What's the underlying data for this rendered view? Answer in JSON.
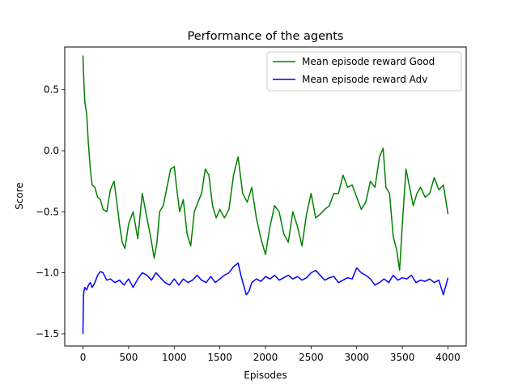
{
  "chart_data": {
    "type": "line",
    "title": "Performance of the agents",
    "xlabel": "Episodes",
    "ylabel": "Score",
    "xlim": [
      -200,
      4200
    ],
    "ylim": [
      -1.6,
      0.85
    ],
    "xticks": [
      0,
      500,
      1000,
      1500,
      2000,
      2500,
      3000,
      3500,
      4000
    ],
    "yticks": [
      -1.5,
      -1.0,
      -0.5,
      0.0,
      0.5
    ],
    "ytick_labels": [
      "−1.5",
      "−1.0",
      "−0.5",
      "0.0",
      "0.5"
    ],
    "grid": false,
    "legend_position": "top-right",
    "series": [
      {
        "name": "Mean episode reward Good",
        "color": "#008000",
        "x": [
          0,
          10,
          20,
          40,
          60,
          80,
          100,
          130,
          160,
          190,
          220,
          260,
          300,
          340,
          370,
          400,
          430,
          460,
          500,
          550,
          600,
          650,
          700,
          740,
          780,
          810,
          840,
          880,
          920,
          960,
          1000,
          1030,
          1060,
          1100,
          1140,
          1180,
          1220,
          1260,
          1300,
          1340,
          1380,
          1420,
          1460,
          1500,
          1550,
          1600,
          1650,
          1700,
          1750,
          1800,
          1850,
          1900,
          1950,
          2000,
          2050,
          2100,
          2150,
          2200,
          2250,
          2300,
          2350,
          2400,
          2450,
          2500,
          2550,
          2600,
          2650,
          2700,
          2750,
          2800,
          2850,
          2900,
          2950,
          3000,
          3050,
          3100,
          3150,
          3200,
          3250,
          3290,
          3320,
          3360,
          3400,
          3440,
          3470,
          3500,
          3540,
          3580,
          3620,
          3660,
          3700,
          3750,
          3800,
          3850,
          3900,
          3950,
          4000
        ],
        "values": [
          0.78,
          0.55,
          0.4,
          0.3,
          0.05,
          -0.15,
          -0.28,
          -0.3,
          -0.38,
          -0.4,
          -0.48,
          -0.5,
          -0.32,
          -0.25,
          -0.42,
          -0.6,
          -0.75,
          -0.8,
          -0.6,
          -0.5,
          -0.72,
          -0.35,
          -0.55,
          -0.7,
          -0.88,
          -0.75,
          -0.5,
          -0.45,
          -0.3,
          -0.15,
          -0.13,
          -0.33,
          -0.5,
          -0.4,
          -0.68,
          -0.78,
          -0.5,
          -0.42,
          -0.35,
          -0.15,
          -0.2,
          -0.45,
          -0.55,
          -0.48,
          -0.55,
          -0.48,
          -0.2,
          -0.05,
          -0.35,
          -0.42,
          -0.3,
          -0.55,
          -0.72,
          -0.85,
          -0.62,
          -0.45,
          -0.5,
          -0.68,
          -0.75,
          -0.5,
          -0.62,
          -0.78,
          -0.52,
          -0.35,
          -0.55,
          -0.52,
          -0.48,
          -0.45,
          -0.35,
          -0.35,
          -0.2,
          -0.3,
          -0.28,
          -0.38,
          -0.48,
          -0.42,
          -0.25,
          -0.3,
          -0.05,
          0.02,
          -0.3,
          -0.35,
          -0.7,
          -0.82,
          -0.98,
          -0.6,
          -0.15,
          -0.3,
          -0.45,
          -0.35,
          -0.3,
          -0.38,
          -0.35,
          -0.22,
          -0.32,
          -0.28,
          -0.52
        ]
      },
      {
        "name": "Mean episode reward Adv",
        "color": "#0000ff",
        "x": [
          0,
          5,
          10,
          20,
          40,
          60,
          80,
          100,
          130,
          160,
          190,
          220,
          260,
          300,
          350,
          400,
          450,
          500,
          550,
          600,
          650,
          700,
          750,
          800,
          850,
          900,
          950,
          1000,
          1050,
          1100,
          1150,
          1200,
          1250,
          1300,
          1350,
          1400,
          1450,
          1500,
          1550,
          1600,
          1650,
          1700,
          1730,
          1760,
          1790,
          1820,
          1850,
          1900,
          1950,
          2000,
          2050,
          2100,
          2150,
          2200,
          2250,
          2300,
          2350,
          2400,
          2450,
          2500,
          2550,
          2600,
          2650,
          2700,
          2750,
          2800,
          2850,
          2900,
          2950,
          3000,
          3050,
          3100,
          3150,
          3200,
          3250,
          3300,
          3350,
          3400,
          3450,
          3500,
          3550,
          3600,
          3650,
          3700,
          3750,
          3800,
          3850,
          3900,
          3950,
          4000
        ],
        "values": [
          -1.5,
          -1.2,
          -1.15,
          -1.12,
          -1.14,
          -1.1,
          -1.08,
          -1.12,
          -1.08,
          -1.02,
          -0.99,
          -1.0,
          -1.06,
          -1.05,
          -1.08,
          -1.06,
          -1.1,
          -1.05,
          -1.12,
          -1.05,
          -1.0,
          -1.02,
          -1.06,
          -1.0,
          -1.04,
          -1.08,
          -1.1,
          -1.05,
          -1.1,
          -1.05,
          -1.08,
          -1.06,
          -1.02,
          -1.06,
          -1.08,
          -1.03,
          -1.08,
          -1.05,
          -1.02,
          -1.0,
          -0.95,
          -0.92,
          -1.02,
          -1.1,
          -1.18,
          -1.15,
          -1.08,
          -1.05,
          -1.07,
          -1.03,
          -1.05,
          -1.02,
          -1.06,
          -1.04,
          -1.02,
          -1.05,
          -1.03,
          -1.06,
          -1.04,
          -1.0,
          -0.98,
          -1.02,
          -1.06,
          -1.04,
          -1.03,
          -1.08,
          -1.06,
          -1.04,
          -1.05,
          -0.96,
          -1.0,
          -1.02,
          -1.05,
          -1.1,
          -1.08,
          -1.05,
          -1.08,
          -1.02,
          -1.06,
          -1.04,
          -1.05,
          -1.02,
          -1.08,
          -1.06,
          -1.07,
          -1.05,
          -1.08,
          -1.06,
          -1.18,
          -1.04
        ]
      }
    ]
  }
}
